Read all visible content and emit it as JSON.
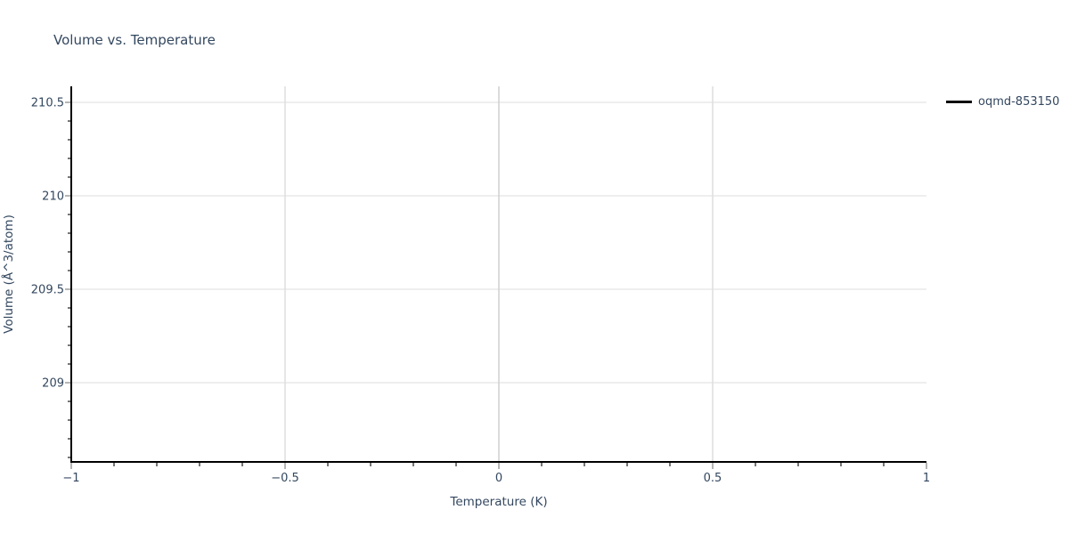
{
  "chart_data": {
    "type": "line",
    "title": "Volume vs. Temperature",
    "xlabel": "Temperature (K)",
    "ylabel": "Volume (Å^3/atom)",
    "xlim": [
      -1,
      1
    ],
    "ylim": [
      208.58,
      210.6
    ],
    "x_ticks": [
      -1,
      -0.5,
      0,
      0.5,
      1
    ],
    "y_ticks": [
      210.5,
      210,
      209.5,
      209
    ],
    "x_tick_labels": [
      "−1",
      "−0.5",
      "0",
      "0.5",
      "1"
    ],
    "y_tick_labels": [
      "210.5",
      "210",
      "209.5",
      "209"
    ],
    "grid": true,
    "legend_position": "outside-top-right",
    "legend": {
      "entries": [
        {
          "label": "oqmd-853150",
          "line_color": "#000000"
        }
      ]
    },
    "series": [
      {
        "name": "oqmd-853150",
        "x": [],
        "y": [],
        "visible_points": 0
      }
    ]
  },
  "colors": {
    "text": "#33475f",
    "axis_line": "#000000",
    "grid_horizontal": "#e8e8e8",
    "grid_vertical": "#dedede",
    "zero_gridline": "#d0d0d0",
    "major_tick": "#b5b5b5",
    "minor_tick": "#757575",
    "legend_line": "#000000",
    "background": "#ffffff"
  }
}
